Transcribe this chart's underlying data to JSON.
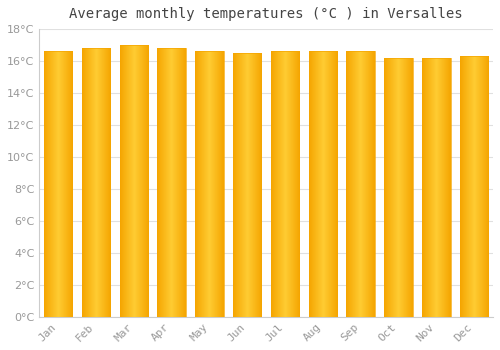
{
  "title": "Average monthly temperatures (°C ) in Versalles",
  "months": [
    "Jan",
    "Feb",
    "Mar",
    "Apr",
    "May",
    "Jun",
    "Jul",
    "Aug",
    "Sep",
    "Oct",
    "Nov",
    "Dec"
  ],
  "values": [
    16.6,
    16.8,
    17.0,
    16.8,
    16.6,
    16.5,
    16.6,
    16.6,
    16.6,
    16.2,
    16.2,
    16.3
  ],
  "bar_color_center": "#FFCC33",
  "bar_color_edge": "#F5A500",
  "ylim": [
    0,
    18
  ],
  "ytick_step": 2,
  "background_color": "#FFFFFF",
  "plot_bg_color": "#FFFFFF",
  "grid_color": "#E0E0E0",
  "title_fontsize": 10,
  "tick_fontsize": 8,
  "tick_color": "#999999",
  "axis_color": "#CCCCCC",
  "bar_width": 0.75
}
